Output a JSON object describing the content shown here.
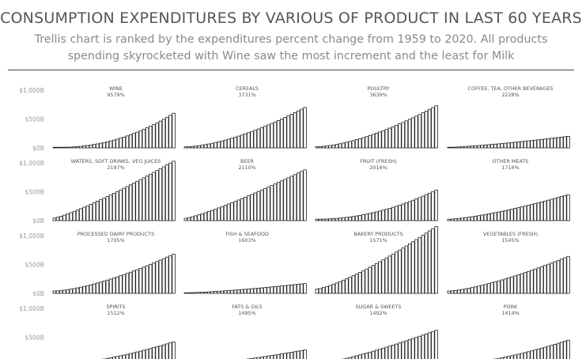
{
  "header": {
    "title": "CONSUMPTION EXPENDITURES BY VARIOUS OF PRODUCT IN LAST 60 YEARS",
    "subtitle": "Trellis chart is ranked by the expenditures percent change from 1959 to 2020. All products spending skyrocketed with Wine saw the most increment and the least for Milk"
  },
  "chart_data": {
    "type": "bar",
    "layout": "trellis",
    "columns": 4,
    "y_unit": "billion USD",
    "ylim": [
      0,
      1000
    ],
    "y_ticks": [
      {
        "value": 0,
        "label": "$0B"
      },
      {
        "value": 500,
        "label": "$500B"
      },
      {
        "value": 1000,
        "label": "$1,000B"
      }
    ],
    "bars_per_panel": 37,
    "panels": [
      {
        "name": "WINE",
        "pct": "9579%",
        "start": 6,
        "end": 600,
        "k": 2.2
      },
      {
        "name": "CEREALS",
        "pct": "3731%",
        "start": 18,
        "end": 700,
        "k": 1.6
      },
      {
        "name": "POULTRY",
        "pct": "3639%",
        "start": 20,
        "end": 730,
        "k": 1.6
      },
      {
        "name": "COFFEE, TEA, OTHER BEVERAGES",
        "pct": "2228%",
        "start": 9,
        "end": 200,
        "k": 1.3
      },
      {
        "name": "WATERS, SOFT DRINKS, VEG JUICES",
        "pct": "2197%",
        "start": 45,
        "end": 1030,
        "k": 1.2
      },
      {
        "name": "BEER",
        "pct": "2110%",
        "start": 40,
        "end": 880,
        "k": 1.2
      },
      {
        "name": "FRUIT (FRESH)",
        "pct": "2016%",
        "start": 25,
        "end": 530,
        "k": 2.0
      },
      {
        "name": "OTHER MEATS",
        "pct": "1716%",
        "start": 25,
        "end": 450,
        "k": 1.4
      },
      {
        "name": "PROCESSED DAIRY PRODUCTS",
        "pct": "1705%",
        "start": 40,
        "end": 680,
        "k": 1.5
      },
      {
        "name": "FISH & SEAFOOD",
        "pct": "1603%",
        "start": 10,
        "end": 170,
        "k": 1.4
      },
      {
        "name": "BAKERY PRODUCTS",
        "pct": "1571%",
        "start": 75,
        "end": 1160,
        "k": 1.3
      },
      {
        "name": "VEGETABLES (FRESH)",
        "pct": "1545%",
        "start": 40,
        "end": 640,
        "k": 1.4
      },
      {
        "name": "SPIRITS",
        "pct": "1512%",
        "start": 25,
        "end": 420,
        "k": 1.6
      },
      {
        "name": "FATS & OILS",
        "pct": "1495%",
        "start": 18,
        "end": 280,
        "k": 1.4
      },
      {
        "name": "SUGAR & SWEETS",
        "pct": "1492%",
        "start": 40,
        "end": 620,
        "k": 1.3
      },
      {
        "name": "PORK",
        "pct": "1414%",
        "start": 30,
        "end": 450,
        "k": 1.6
      }
    ]
  }
}
